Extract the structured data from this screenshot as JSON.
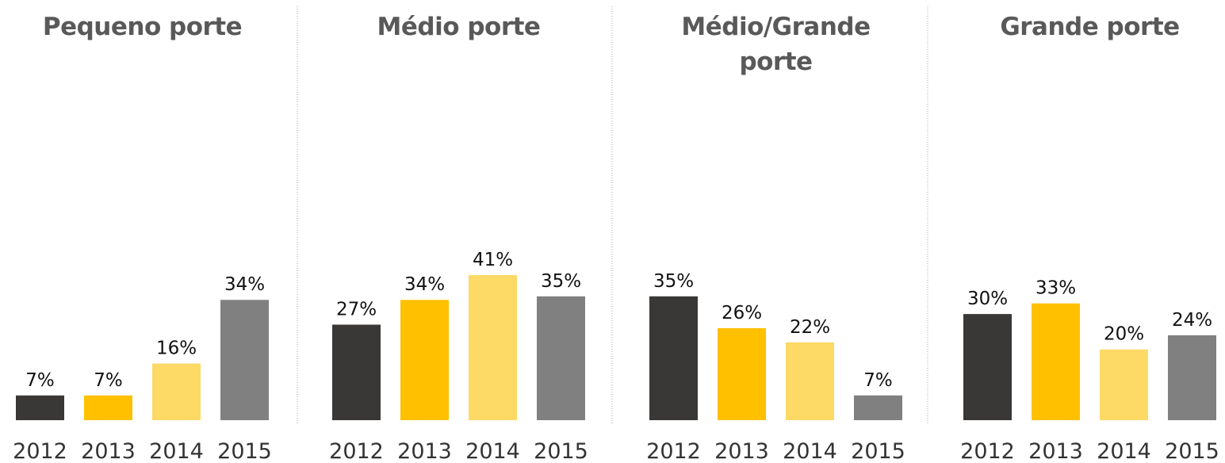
{
  "chart_data": [
    {
      "type": "bar",
      "title": "Pequeno porte",
      "categories": [
        "2012",
        "2013",
        "2014",
        "2015"
      ],
      "values": [
        7,
        7,
        16,
        34
      ],
      "value_labels": [
        "7%",
        "7%",
        "16%",
        "34%"
      ],
      "colors": [
        "#3a3836",
        "#ffc000",
        "#fdd966",
        "#808080"
      ]
    },
    {
      "type": "bar",
      "title": "Médio porte",
      "categories": [
        "2012",
        "2013",
        "2014",
        "2015"
      ],
      "values": [
        27,
        34,
        41,
        35
      ],
      "value_labels": [
        "27%",
        "34%",
        "41%",
        "35%"
      ],
      "colors": [
        "#3a3836",
        "#ffc000",
        "#fdd966",
        "#808080"
      ]
    },
    {
      "type": "bar",
      "title": "Médio/Grande porte",
      "categories": [
        "2012",
        "2013",
        "2014",
        "2015"
      ],
      "values": [
        35,
        26,
        22,
        7
      ],
      "value_labels": [
        "35%",
        "26%",
        "22%",
        "7%"
      ],
      "colors": [
        "#3a3836",
        "#ffc000",
        "#fdd966",
        "#808080"
      ]
    },
    {
      "type": "bar",
      "title": "Grande porte",
      "categories": [
        "2012",
        "2013",
        "2014",
        "2015"
      ],
      "values": [
        30,
        33,
        20,
        24
      ],
      "value_labels": [
        "30%",
        "33%",
        "20%",
        "24%"
      ],
      "colors": [
        "#3a3836",
        "#ffc000",
        "#fdd966",
        "#808080"
      ]
    }
  ]
}
